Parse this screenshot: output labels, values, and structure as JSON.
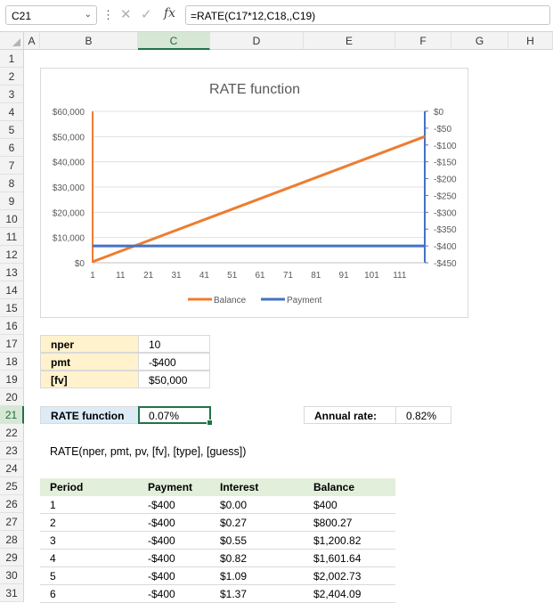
{
  "formula_bar": {
    "name_box": "C21",
    "formula": "=RATE(C17*12,C18,,C19)",
    "fx": "fx"
  },
  "columns": [
    "A",
    "B",
    "C",
    "D",
    "E",
    "F",
    "G",
    "H"
  ],
  "selected_column": "C",
  "rows": [
    "1",
    "2",
    "3",
    "4",
    "5",
    "6",
    "7",
    "8",
    "9",
    "10",
    "11",
    "12",
    "13",
    "14",
    "15",
    "16",
    "17",
    "18",
    "19",
    "20",
    "21",
    "22",
    "23",
    "24",
    "25",
    "26",
    "27",
    "28",
    "29",
    "30",
    "31"
  ],
  "selected_row": "21",
  "inputs": {
    "nper_label": "nper",
    "nper_value": "10",
    "pmt_label": "pmt",
    "pmt_value": "-$400",
    "fv_label": "[fv]",
    "fv_value": "$50,000"
  },
  "result": {
    "label": "RATE function",
    "value": "0.07%",
    "annual_label": "Annual rate:",
    "annual_value": "0.82%"
  },
  "syntax": "RATE(nper, pmt, pv, [fv], [type], [guess])",
  "table": {
    "headers": [
      "Period",
      "Payment",
      "Interest",
      "Balance"
    ],
    "rows": [
      [
        "1",
        "-$400",
        "$0.00",
        "$400"
      ],
      [
        "2",
        "-$400",
        "$0.27",
        "$800.27"
      ],
      [
        "3",
        "-$400",
        "$0.55",
        "$1,200.82"
      ],
      [
        "4",
        "-$400",
        "$0.82",
        "$1,601.64"
      ],
      [
        "5",
        "-$400",
        "$1.09",
        "$2,002.73"
      ],
      [
        "6",
        "-$400",
        "$1.37",
        "$2,404.09"
      ]
    ]
  },
  "chart_data": {
    "type": "line",
    "title": "RATE function",
    "x_ticks": [
      "1",
      "11",
      "21",
      "31",
      "41",
      "51",
      "61",
      "71",
      "81",
      "91",
      "101",
      "111"
    ],
    "x_range": [
      1,
      120
    ],
    "y_left_ticks": [
      "$60,000",
      "$50,000",
      "$40,000",
      "$30,000",
      "$20,000",
      "$10,000",
      "$0"
    ],
    "y_left_range": [
      0,
      60000
    ],
    "y_right_ticks": [
      "$0",
      "-$50",
      "-$100",
      "-$150",
      "-$200",
      "-$250",
      "-$300",
      "-$350",
      "-$400",
      "-$450"
    ],
    "y_right_range": [
      -450,
      0
    ],
    "series": [
      {
        "name": "Balance",
        "axis": "left",
        "color": "#ed7d31",
        "x": [
          1,
          120
        ],
        "values": [
          400,
          50000
        ]
      },
      {
        "name": "Payment",
        "axis": "right",
        "color": "#4472c4",
        "x": [
          1,
          120
        ],
        "values": [
          -400,
          -400
        ]
      }
    ],
    "legend": "bottom",
    "grid": true
  }
}
